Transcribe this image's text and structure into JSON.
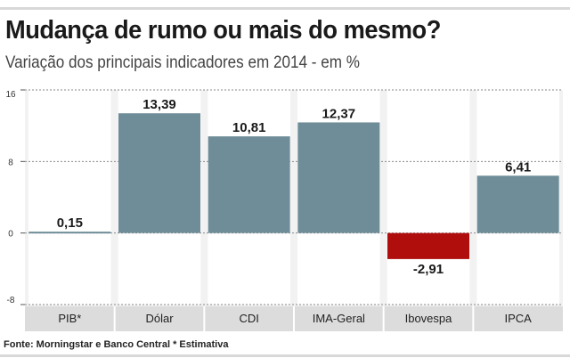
{
  "header": {
    "title": "Mudança de rumo ou mais do mesmo?",
    "subtitle": "Variação dos principais indicadores em 2014 - em %"
  },
  "footer": {
    "source": "Fonte: Morningstar e Banco Central * Estimativa"
  },
  "colors": {
    "positive": "#6e8d98",
    "negative": "#b00d0d",
    "panel": "#f2f2f2",
    "label_band": "#dcdcdc"
  },
  "chart_data": {
    "type": "bar",
    "title": "Mudança de rumo ou mais do mesmo?",
    "subtitle": "Variação dos principais indicadores em 2014 - em %",
    "categories": [
      "PIB*",
      "Dólar",
      "CDI",
      "IMA-Geral",
      "Ibovespa",
      "IPCA"
    ],
    "values": [
      0.15,
      13.39,
      10.81,
      12.37,
      -2.91,
      6.41
    ],
    "value_labels": [
      "0,15",
      "13,39",
      "10,81",
      "12,37",
      "-2,91",
      "6,41"
    ],
    "ylim": [
      -8,
      16
    ],
    "yticks": [
      16,
      8,
      0,
      -8
    ],
    "ytick_labels": [
      "16",
      "8",
      "0",
      "-8"
    ],
    "xlabel": "",
    "ylabel": "",
    "grid": true
  }
}
